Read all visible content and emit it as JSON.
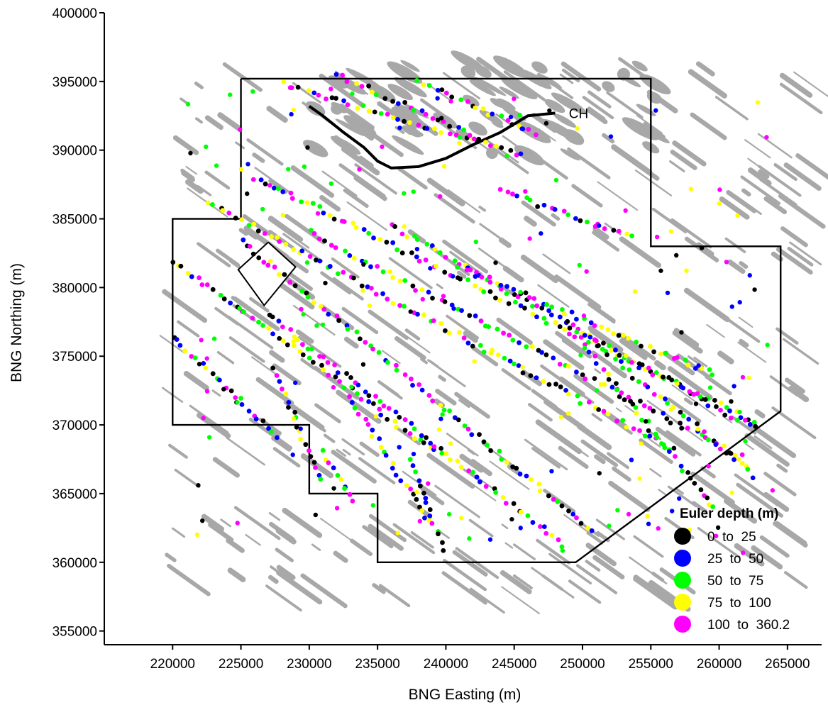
{
  "chart_data": {
    "type": "scatter",
    "xlabel": "BNG Easting (m)",
    "ylabel": "BNG Northing (m)",
    "xlim": [
      215000,
      267500
    ],
    "ylim": [
      354000,
      400000
    ],
    "x_ticks": [
      220000,
      225000,
      230000,
      235000,
      240000,
      245000,
      250000,
      255000,
      260000,
      265000
    ],
    "x_tick_labels": [
      "220000",
      "225000",
      "230000",
      "235000",
      "240000",
      "245000",
      "250000",
      "255000",
      "260000",
      "265000"
    ],
    "y_ticks": [
      355000,
      360000,
      365000,
      370000,
      375000,
      380000,
      385000,
      390000,
      395000,
      400000
    ],
    "y_tick_labels": [
      "355000",
      "360000",
      "365000",
      "370000",
      "375000",
      "380000",
      "385000",
      "390000",
      "395000",
      "400000"
    ],
    "grid": false,
    "legend": {
      "title": "Euler depth (m)",
      "placement": "bottom-right",
      "entries": [
        {
          "label": "0  to  25",
          "color": "#000000"
        },
        {
          "label": "25  to  50",
          "color": "#0000ff"
        },
        {
          "label": "50  to  75",
          "color": "#00ff00"
        },
        {
          "label": "75  to  100",
          "color": "#ffff00"
        },
        {
          "label": "100  to  360.2",
          "color": "#ff00ff"
        }
      ]
    },
    "annotations": [
      {
        "text": "CH",
        "x": 249000,
        "y": 392700
      }
    ],
    "survey_boundary": [
      [
        225000,
        395200
      ],
      [
        255000,
        395200
      ],
      [
        255000,
        383000
      ],
      [
        264500,
        383000
      ],
      [
        264500,
        371000
      ],
      [
        249500,
        360000
      ],
      [
        235000,
        360000
      ],
      [
        235000,
        365000
      ],
      [
        230000,
        365000
      ],
      [
        230000,
        370000
      ],
      [
        220000,
        370000
      ],
      [
        220000,
        385000
      ],
      [
        225000,
        385000
      ],
      [
        225000,
        395200
      ]
    ],
    "excluded_area": [
      [
        227000,
        383300
      ],
      [
        229000,
        381500
      ],
      [
        226700,
        378700
      ],
      [
        224800,
        381300
      ],
      [
        227000,
        383300
      ]
    ],
    "ch_line": [
      [
        230000,
        393200
      ],
      [
        231000,
        392500
      ],
      [
        232500,
        391300
      ],
      [
        234000,
        390200
      ],
      [
        235000,
        389200
      ],
      [
        236000,
        388700
      ],
      [
        238000,
        388800
      ],
      [
        240000,
        389400
      ],
      [
        242000,
        390400
      ],
      [
        244000,
        391300
      ],
      [
        246000,
        392500
      ],
      [
        248000,
        392700
      ]
    ],
    "lineaments": [
      {
        "start": [
          220000,
          382000
        ],
        "end": [
          240000,
          367500
        ]
      },
      {
        "start": [
          223000,
          386000
        ],
        "end": [
          257000,
          368000
        ]
      },
      {
        "start": [
          225000,
          383500
        ],
        "end": [
          251000,
          362000
        ]
      },
      {
        "start": [
          220000,
          376500
        ],
        "end": [
          228000,
          368800
        ]
      },
      {
        "start": [
          226000,
          388000
        ],
        "end": [
          263000,
          370000
        ]
      },
      {
        "start": [
          230000,
          384000
        ],
        "end": [
          262000,
          367500
        ]
      },
      {
        "start": [
          227000,
          378000
        ],
        "end": [
          249000,
          361000
        ]
      },
      {
        "start": [
          233000,
          372000
        ],
        "end": [
          239000,
          362500
        ]
      },
      {
        "start": [
          236000,
          384500
        ],
        "end": [
          263000,
          369500
        ]
      },
      {
        "start": [
          241000,
          381500
        ],
        "end": [
          260000,
          373500
        ]
      },
      {
        "start": [
          244000,
          387000
        ],
        "end": [
          254000,
          383500
        ]
      },
      {
        "start": [
          227500,
          374000
        ],
        "end": [
          231000,
          365500
        ]
      },
      {
        "start": [
          249000,
          377500
        ],
        "end": [
          263000,
          366000
        ]
      },
      {
        "start": [
          228000,
          394800
        ],
        "end": [
          246000,
          389500
        ]
      },
      {
        "start": [
          232000,
          395500
        ],
        "end": [
          243000,
          390500
        ]
      },
      {
        "start": [
          238000,
          395000
        ],
        "end": [
          247000,
          391000
        ]
      },
      {
        "start": [
          250000,
          376000
        ],
        "end": [
          260000,
          363500
        ]
      },
      {
        "start": [
          237500,
          367500
        ],
        "end": [
          240000,
          360500
        ]
      },
      {
        "start": [
          231000,
          368000
        ],
        "end": [
          233500,
          364000
        ]
      }
    ]
  }
}
